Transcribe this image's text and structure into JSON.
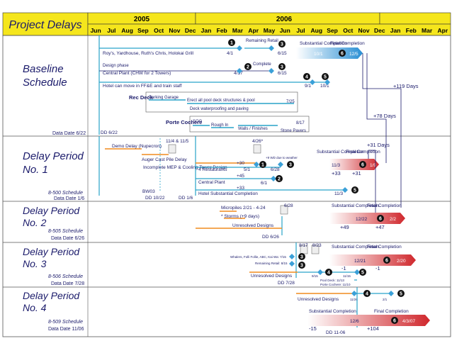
{
  "title": "Project Delays",
  "years": [
    "2005",
    "2006"
  ],
  "months": [
    "Jun",
    "Jul",
    "Aug",
    "Sep",
    "Oct",
    "Nov",
    "Dec",
    "Jan",
    "Feb",
    "Mar",
    "Apr",
    "May",
    "Jun",
    "Jul",
    "Aug",
    "Sep",
    "Oct",
    "Nov",
    "Dec",
    "Jan",
    "Feb",
    "Mar",
    "Apr"
  ],
  "colors": {
    "header_yellow": "#f5e61c",
    "row_line": "#29a3c9",
    "dark_line": "#1b1b6b",
    "orange": "#f08c1e",
    "red": "#d0282d",
    "blue": "#3aa0d8"
  },
  "sections": [
    {
      "title_l1": "Baseline",
      "title_l2": "Schedule",
      "schedule": "",
      "data_date": "Data Date 6/22"
    },
    {
      "title_l1": "Delay Period",
      "title_l2": "No. 1",
      "schedule": "8-500 Schedule",
      "data_date": "Data Date 1/6"
    },
    {
      "title_l1": "Delay Period",
      "title_l2": "No. 2",
      "schedule": "8-505 Schedule",
      "data_date": "Data Date 6/26"
    },
    {
      "title_l1": "Delay Period",
      "title_l2": "No. 3",
      "schedule": "8-506 Schedule",
      "data_date": "Data Date 7/28"
    },
    {
      "title_l1": "Delay Period",
      "title_l2": "No. 4",
      "schedule": "8-509 Schedule",
      "data_date": "Data Date 11/06"
    }
  ],
  "baseline": {
    "remaining_retail": "Remaining Retail",
    "royals": "Roy's, Yardhouse, Ruth's Chris, Holokai Grill",
    "d_4_1": "4/1",
    "d_6_15a": "6/15",
    "design_phase": "Design phase",
    "complete": "Complete",
    "central_plant": "Central Plant (CHW for 2 Towers)",
    "d_4_17": "4/17",
    "d_6_15b": "6/15",
    "hotel_move": "Hotel can move in FF&E and train staff",
    "d_9_1": "9/1",
    "d_10_1": "10/1",
    "substantial": "Substantial Completion",
    "final": "Final Completion",
    "bar_10_1": "10/1",
    "bar_12_5": "12/5",
    "plus119": "+119 Days",
    "rec_deck": "Rec Deck",
    "parking_garage": "Parking Garage",
    "erect_pool": "Erect all pool deck structures & pool",
    "d_7_25": "7/25",
    "deck_waterproof": "Deck waterproofing and paving",
    "porte_cochere": "Porte Cochere",
    "sog": "SOG",
    "rough_in": "Rough In",
    "walls_finishes": "Walls / Finishes",
    "stone_pavers": "Stone Pavers",
    "d_8_17": "8/17",
    "plus78": "+78 Days",
    "dd_6_22": "DD 6/22"
  },
  "dp1": {
    "demo_delay": "Demo Delay (Nupecron)",
    "d_11_4": "11/4 & 11/5",
    "d_4_26": "4/26*",
    "auger": "Auger Cast Pile Delay",
    "incomplete_mep": "Incomplete MEP & Cooling Tower Design",
    "four_rest": "4 Restaurants",
    "plus30": "+30",
    "d_5_1": "5/1",
    "d_6_28": "6/28",
    "weather": "+9 WD due to weather",
    "plus45": "+45",
    "central_plant": "Central Plant",
    "d_6_1": "6/1",
    "plus33a": "+33",
    "hotel_sub": "Hotel Substantial Completion",
    "d_11_3a": "11/3",
    "bw03": "BW03",
    "dd_10_22": "DD 10/22",
    "dd_1_6": "DD 1/6",
    "substantial": "Substantial Completion",
    "final": "Final Completion",
    "bar_11_3": "11/3",
    "bar_1_9": "1/9",
    "plus33b": "+33",
    "plus31a": "+31",
    "plus31b": "+31 Days"
  },
  "dp2": {
    "d_6_28": "6/28",
    "micropiles": "Micropiles 2/21 - 4-24",
    "storms": "* Storms (+9 days)",
    "unresolved": "Unresolved Designs",
    "dd": "DD 6/26",
    "substantial": "Substantial Completion",
    "final": "Final Completion",
    "bar_12_22": "12/22",
    "bar_2_2": "2/2",
    "plus49": "+49",
    "plus47": "+47"
  },
  "dp3": {
    "d_8_17": "8/17",
    "d_8_23": "8/23",
    "whalers": "Whalers, Folli Follie, ABC, Kai Wa: 7/15",
    "remaining_retail": "Remaining Retail: 8/15",
    "unresolved": "Unresolved Designs",
    "dd": "DD 7/28",
    "d_9_15": "9/15",
    "d_11_15": "11/15",
    "pool_deck": "Pool Deck: 11/13",
    "porte_cochere": "Porte Cochere: 11/10",
    "substantial": "Substantial Completion",
    "final": "Final Completion",
    "bar_12_21": "12/21",
    "bar_2_20": "2/20",
    "minus1a": "-1",
    "minus1b": "-1"
  },
  "dp4": {
    "unresolved": "Unresolved Designs",
    "d_11_26": "11/26",
    "d_2_1": "2/1",
    "substantial": "Substantial Completion",
    "final": "Final Completion",
    "bar_12_6": "12/6",
    "bar_4_3": "4/3/07",
    "minus15": "-15",
    "plus104": "+104",
    "dd": "DD 11-06"
  },
  "milestones": {
    "m1": "1",
    "m2": "2",
    "m3": "3",
    "m4": "4",
    "m5": "5",
    "m6": "6"
  }
}
